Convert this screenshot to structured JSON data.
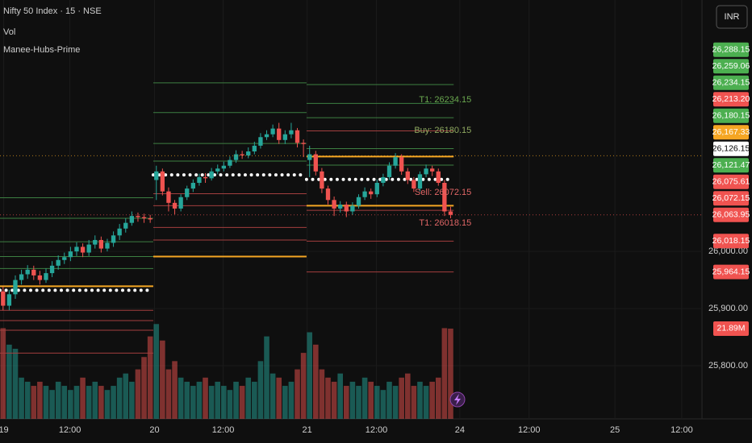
{
  "chart_data": {
    "type": "candlestick",
    "title": "Nifty 50 Index · 15 · NSE",
    "indicators": [
      "Vol",
      "Manee-Hubs-Prime"
    ],
    "currency_button": "INR",
    "xlim": [
      0,
      114.5
    ],
    "xticks": [
      {
        "value": 0.6,
        "label": "19"
      },
      {
        "value": 11.4,
        "label": "12:00"
      },
      {
        "value": 25.2,
        "label": "20"
      },
      {
        "value": 36.4,
        "label": "12:00"
      },
      {
        "value": 50.1,
        "label": "21"
      },
      {
        "value": 61.4,
        "label": "12:00"
      },
      {
        "value": 75,
        "label": "24"
      },
      {
        "value": 86.3,
        "label": "12:00"
      },
      {
        "value": 100.3,
        "label": "25"
      },
      {
        "value": 111.2,
        "label": "12:00"
      }
    ],
    "ylim": [
      25707,
      26440
    ],
    "yticks": [
      {
        "value": 25800,
        "label": "25,800.00"
      },
      {
        "value": 25900,
        "label": "25,900.00"
      },
      {
        "value": 26000,
        "label": "26,000.00"
      }
    ],
    "up_color": "#26a69a",
    "down_color": "#ef5350",
    "open": [
      25930,
      25905,
      25925,
      25950,
      25960,
      25968,
      25958,
      25950,
      25962,
      25975,
      25985,
      25990,
      26000,
      26008,
      25998,
      26012,
      26020,
      26005,
      26015,
      26028,
      26040,
      26050,
      26062,
      26060,
      26058,
      26125,
      26140,
      26105,
      26085,
      26075,
      26095,
      26110,
      26120,
      26130,
      26128,
      26140,
      26145,
      26150,
      26160,
      26170,
      26168,
      26175,
      26185,
      26200,
      26205,
      26215,
      26195,
      26205,
      26212,
      26190,
      26160,
      26170,
      26140,
      26110,
      26090,
      26075,
      26082,
      26070,
      26080,
      26095,
      26105,
      26100,
      26120,
      26130,
      26150,
      26165,
      26140,
      26125,
      26110,
      26135,
      26145,
      26140,
      26120,
      26070
    ],
    "high": [
      25938,
      25933,
      25958,
      25968,
      25976,
      25975,
      25966,
      25970,
      25983,
      25993,
      25998,
      26008,
      26016,
      26014,
      26020,
      26028,
      26026,
      26022,
      26035,
      26048,
      26058,
      26070,
      26068,
      26066,
      26064,
      26150,
      26145,
      26112,
      26090,
      26100,
      26115,
      26126,
      26136,
      26137,
      26146,
      26152,
      26157,
      26166,
      26177,
      26176,
      26182,
      26192,
      26207,
      26212,
      26222,
      26225,
      26212,
      26225,
      26216,
      26196,
      26185,
      26176,
      26146,
      26115,
      26096,
      26088,
      26087,
      26086,
      26100,
      26112,
      26110,
      26126,
      26136,
      26156,
      26172,
      26170,
      26146,
      26130,
      26140,
      26152,
      26150,
      26145,
      26125,
      26078
    ],
    "low": [
      25897,
      25897,
      25917,
      25942,
      25952,
      25950,
      25942,
      25945,
      25955,
      25968,
      25978,
      25983,
      25992,
      25990,
      25992,
      26005,
      25998,
      26000,
      26008,
      26020,
      26033,
      26045,
      26052,
      26050,
      26050,
      26090,
      26098,
      26070,
      26065,
      26070,
      26090,
      26104,
      26115,
      26120,
      26124,
      26135,
      26140,
      26146,
      26155,
      26162,
      26163,
      26170,
      26180,
      26195,
      26200,
      26188,
      26188,
      26198,
      26182,
      26165,
      26130,
      26133,
      26102,
      26082,
      26062,
      26068,
      26060,
      26064,
      26075,
      26090,
      26092,
      26095,
      26114,
      26125,
      26145,
      26134,
      26118,
      26104,
      26105,
      26130,
      26132,
      26115,
      26062,
      26058
    ],
    "close": [
      25905,
      25925,
      25950,
      25960,
      25968,
      25958,
      25950,
      25962,
      25975,
      25985,
      25990,
      26000,
      26008,
      25998,
      26012,
      26020,
      26005,
      26015,
      26028,
      26040,
      26050,
      26062,
      26060,
      26058,
      26056,
      26140,
      26105,
      26085,
      26075,
      26095,
      26110,
      26120,
      26130,
      26128,
      26140,
      26145,
      26150,
      26160,
      26170,
      26168,
      26175,
      26185,
      26200,
      26205,
      26215,
      26195,
      26205,
      26212,
      26190,
      26188,
      26170,
      26140,
      26110,
      26090,
      26075,
      26082,
      26070,
      26080,
      26095,
      26105,
      26100,
      26120,
      26130,
      26150,
      26165,
      26140,
      26125,
      26110,
      26135,
      26145,
      26140,
      26120,
      26070,
      26063.95
    ],
    "volume_ylim": [
      0,
      101.6
    ],
    "volume": [
      22,
      18,
      17,
      10,
      9,
      8,
      9,
      8,
      7,
      9,
      8,
      7,
      8,
      10,
      8,
      9,
      8,
      7,
      8,
      10,
      11,
      9,
      12,
      15,
      20,
      23,
      19,
      12,
      14,
      10,
      9,
      8,
      9,
      10,
      8,
      9,
      8,
      7,
      9,
      8,
      10,
      9,
      14,
      20,
      11,
      10,
      8,
      9,
      12,
      16,
      21,
      18,
      12,
      10,
      9,
      11,
      8,
      9,
      8,
      10,
      9,
      8,
      7,
      9,
      8,
      10,
      11,
      8,
      9,
      8,
      9,
      10,
      22,
      21.89
    ],
    "sessions": [
      {
        "first": 0,
        "last": 24,
        "levels": [
          {
            "price": 26094,
            "color": "#3d7f42"
          },
          {
            "price": 26058,
            "color": "#3d7f42"
          },
          {
            "price": 26017,
            "color": "#3d7f42"
          },
          {
            "price": 25991,
            "color": "#3d7f42"
          },
          {
            "price": 25970,
            "color": "#3d7f42"
          },
          {
            "price": 25939,
            "color": "#f5a623"
          },
          {
            "price": 25932,
            "color": "#ffffff",
            "style": "dots"
          },
          {
            "price": 25897,
            "color": "#a33f3f"
          },
          {
            "price": 25879,
            "color": "#a33f3f"
          },
          {
            "price": 25862,
            "color": "#a33f3f"
          },
          {
            "price": 25822,
            "color": "#a33f3f"
          }
        ]
      },
      {
        "first": 25,
        "last": 49,
        "levels": [
          {
            "price": 26295,
            "color": "#3d7f42"
          },
          {
            "price": 26243,
            "color": "#3d7f42"
          },
          {
            "price": 26189,
            "color": "#3d7f42"
          },
          {
            "price": 26158,
            "color": "#3d7f42"
          },
          {
            "price": 26134,
            "color": "#ffffff",
            "style": "dots"
          },
          {
            "price": 26101,
            "color": "#a33f3f"
          },
          {
            "price": 26080,
            "color": "#a33f3f"
          },
          {
            "price": 26042,
            "color": "#a33f3f"
          },
          {
            "price": 26020,
            "color": "#a33f3f"
          },
          {
            "price": 25991,
            "color": "#f5a623"
          }
        ]
      },
      {
        "first": 50,
        "last": 73,
        "levels": [
          {
            "price": 26292,
            "color": "#3d7f42"
          },
          {
            "price": 26259,
            "color": "#3d7f42"
          },
          {
            "price": 26234,
            "color": "#3d7f42"
          },
          {
            "price": 26211,
            "color": "#a33f3f"
          },
          {
            "price": 26180,
            "color": "#3d7f42"
          },
          {
            "price": 26166,
            "color": "#f5a623"
          },
          {
            "price": 26151,
            "color": "#3d7f42"
          },
          {
            "price": 26126,
            "color": "#ffffff",
            "style": "dots"
          },
          {
            "price": 26080,
            "color": "#f5a623"
          },
          {
            "price": 26072,
            "color": "#a33f3f"
          },
          {
            "price": 26018,
            "color": "#a33f3f"
          },
          {
            "price": 25964,
            "color": "#a33f3f"
          }
        ]
      }
    ],
    "annotations": [
      {
        "text": "T1: 26234.15",
        "level": 26234.15,
        "color": "#6aa84f"
      },
      {
        "text": "Buy: 26180.15",
        "level": 26180.15,
        "color": "#8fa860"
      },
      {
        "text": "Sell: 26072.15",
        "level": 26072.15,
        "color": "#e06666"
      },
      {
        "text": "T1: 26018.15",
        "level": 26018.15,
        "color": "#e06666"
      }
    ],
    "price_tags": [
      {
        "value": 26288.15,
        "label": "26,288.15",
        "color": "#4caf50"
      },
      {
        "value": 26259.06,
        "label": "26,259.06",
        "color": "#4caf50"
      },
      {
        "value": 26234.15,
        "label": "26,234.15",
        "color": "#4caf50"
      },
      {
        "value": 26213.2,
        "label": "26,213.20",
        "color": "#f05350"
      },
      {
        "value": 26180.15,
        "label": "26,180.15",
        "color": "#4caf50"
      },
      {
        "value": 26167.33,
        "label": "26,167.33",
        "color": "#f5a623",
        "dotted": true
      },
      {
        "value": 26126.15,
        "label": "26,126.15",
        "color": "#ffffff"
      },
      {
        "value": 26121.47,
        "label": "26,121.47",
        "color": "#4caf50"
      },
      {
        "value": 26075.61,
        "label": "26,075.61",
        "color": "#f05350"
      },
      {
        "value": 26072.15,
        "label": "26,072.15",
        "color": "#f05350"
      },
      {
        "value": 26063.95,
        "label": "26,063.95",
        "color": "#f05350",
        "dotted": true
      },
      {
        "value": 26018.15,
        "label": "26,018.15",
        "color": "#f05350"
      },
      {
        "value": 25964.15,
        "label": "25,964.15",
        "color": "#f05350"
      }
    ],
    "volume_tag": {
      "value": 21.89,
      "label": "21.89M",
      "color": "#f05350"
    }
  }
}
